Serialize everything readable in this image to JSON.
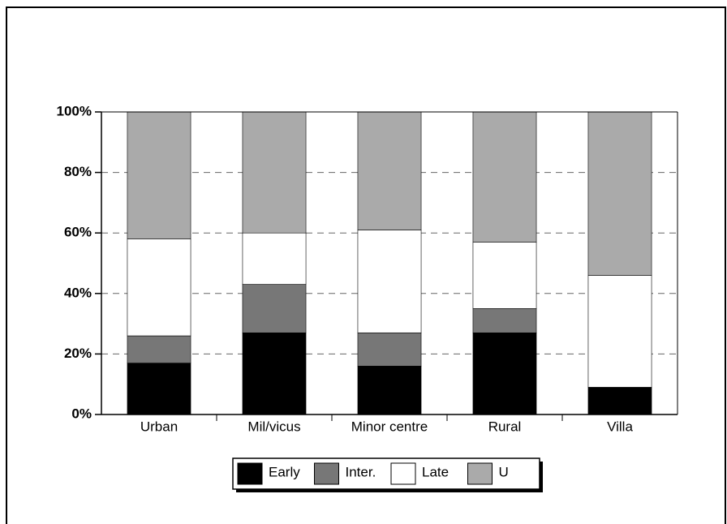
{
  "chart_data": {
    "type": "stacked_bar",
    "categories": [
      "Urban",
      "Mil/vicus",
      "Minor centre",
      "Rural",
      "Villa"
    ],
    "series": [
      {
        "name": "Early",
        "color": "#000000",
        "values": [
          17,
          27,
          16,
          27,
          9
        ]
      },
      {
        "name": "Inter.",
        "color": "#777777",
        "values": [
          9,
          16,
          11,
          8,
          0
        ]
      },
      {
        "name": "Late",
        "color": "#ffffff",
        "values": [
          32,
          17,
          34,
          22,
          37
        ]
      },
      {
        "name": "U",
        "color": "#aaaaaa",
        "values": [
          42,
          40,
          39,
          43,
          54
        ]
      }
    ],
    "ylim": [
      0,
      100
    ],
    "yticks": [
      {
        "value": 0,
        "label": "0%"
      },
      {
        "value": 20,
        "label": "20%"
      },
      {
        "value": 40,
        "label": "40%"
      },
      {
        "value": 60,
        "label": "60%"
      },
      {
        "value": 80,
        "label": "80%"
      },
      {
        "value": 100,
        "label": "100%"
      }
    ],
    "grid": true,
    "legend": "bottom"
  }
}
